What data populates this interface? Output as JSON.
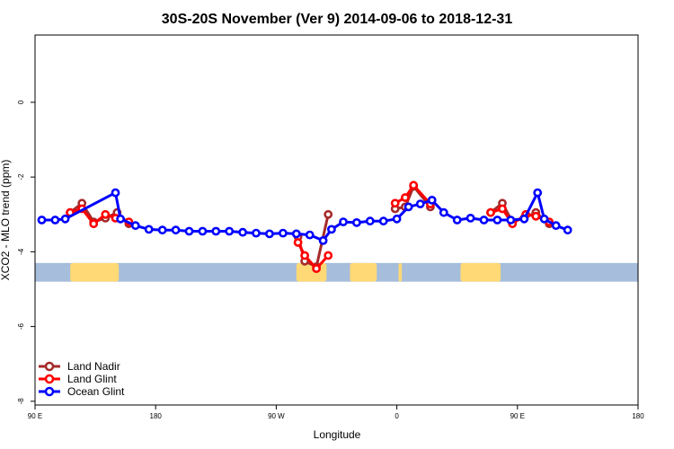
{
  "chart_data": {
    "type": "line",
    "title": "30S-20S November (Ver 9)   2014-09-06 to 2018-12-31",
    "xlabel": "Longitude",
    "ylabel": "XCO2 - MLO trend (ppm)",
    "xlim": [
      90,
      450
    ],
    "ylim": [
      -8.1,
      1.8
    ],
    "xticks": [
      90,
      162,
      234,
      306,
      378,
      450
    ],
    "xtick_labels": [
      "90 E",
      "180",
      "90 W",
      "0",
      "90 E",
      "180"
    ],
    "yticks": [
      -8,
      -6,
      -4,
      -2,
      0
    ],
    "ytick_labels": [
      "-8",
      "-6",
      "-4",
      "-2",
      "0"
    ],
    "land_band": {
      "y_range": [
        -4.8,
        -4.3
      ],
      "ocean_color": "#a6bddb",
      "land_color": "#fed976",
      "land_spans": [
        [
          111,
          140
        ],
        [
          246,
          264
        ],
        [
          278,
          294
        ],
        [
          307,
          309
        ],
        [
          344,
          368
        ]
      ]
    },
    "legend": {
      "position": "bottom-left",
      "entries": [
        "Land Nadir",
        "Land Glint",
        "Ocean Glint"
      ]
    },
    "series": [
      {
        "name": "Land Nadir",
        "color": "#a52a2a",
        "segments": [
          [
            [
              111,
              -2.95
            ],
            [
              118,
              -2.7
            ],
            [
              125,
              -3.2
            ],
            [
              132,
              -3.1
            ],
            [
              139,
              -2.95
            ],
            [
              146,
              -3.25
            ]
          ],
          [
            [
              247,
              -3.6
            ],
            [
              251,
              -4.25
            ],
            [
              258,
              -4.4
            ],
            [
              265,
              -3.0
            ]
          ],
          [
            [
              305,
              -2.85
            ],
            [
              311,
              -2.8
            ],
            [
              316,
              -2.25
            ],
            [
              326,
              -2.8
            ]
          ],
          [
            [
              362,
              -2.95
            ],
            [
              369,
              -2.7
            ],
            [
              375,
              -3.2
            ],
            [
              382,
              -3.1
            ],
            [
              389,
              -2.95
            ],
            [
              397,
              -3.25
            ]
          ]
        ]
      },
      {
        "name": "Land Glint",
        "color": "#ff0000",
        "segments": [
          [
            [
              111,
              -2.95
            ],
            [
              118,
              -2.85
            ],
            [
              125,
              -3.25
            ],
            [
              132,
              -3.0
            ],
            [
              138,
              -3.1
            ],
            [
              146,
              -3.2
            ]
          ],
          [
            [
              247,
              -3.75
            ],
            [
              251,
              -4.1
            ],
            [
              258,
              -4.45
            ],
            [
              265,
              -4.1
            ]
          ],
          [
            [
              305,
              -2.7
            ],
            [
              311,
              -2.55
            ],
            [
              316,
              -2.22
            ],
            [
              326,
              -2.72
            ]
          ],
          [
            [
              362,
              -2.95
            ],
            [
              369,
              -2.85
            ],
            [
              375,
              -3.25
            ],
            [
              383,
              -3.0
            ],
            [
              389,
              -3.05
            ],
            [
              397,
              -3.2
            ]
          ]
        ]
      },
      {
        "name": "Ocean Glint",
        "color": "#0000ff",
        "segments": [
          [
            [
              94,
              -3.15
            ],
            [
              102,
              -3.15
            ],
            [
              108,
              -3.12
            ],
            [
              138,
              -2.42
            ],
            [
              141,
              -3.12
            ],
            [
              150,
              -3.3
            ],
            [
              158,
              -3.4
            ],
            [
              166,
              -3.42
            ],
            [
              174,
              -3.42
            ],
            [
              182,
              -3.45
            ],
            [
              190,
              -3.45
            ],
            [
              198,
              -3.45
            ],
            [
              206,
              -3.45
            ],
            [
              214,
              -3.48
            ],
            [
              222,
              -3.5
            ],
            [
              230,
              -3.52
            ],
            [
              238,
              -3.5
            ],
            [
              246,
              -3.52
            ],
            [
              254,
              -3.55
            ],
            [
              262,
              -3.7
            ],
            [
              267,
              -3.4
            ],
            [
              274,
              -3.2
            ],
            [
              282,
              -3.22
            ],
            [
              290,
              -3.18
            ],
            [
              298,
              -3.18
            ],
            [
              306,
              -3.12
            ],
            [
              313,
              -2.8
            ],
            [
              320,
              -2.72
            ],
            [
              327,
              -2.62
            ],
            [
              334,
              -2.95
            ],
            [
              342,
              -3.15
            ],
            [
              350,
              -3.1
            ],
            [
              358,
              -3.15
            ],
            [
              366,
              -3.15
            ],
            [
              374,
              -3.15
            ],
            [
              382,
              -3.12
            ],
            [
              390,
              -2.42
            ],
            [
              394,
              -3.12
            ],
            [
              401,
              -3.3
            ],
            [
              408,
              -3.42
            ]
          ]
        ]
      }
    ]
  }
}
